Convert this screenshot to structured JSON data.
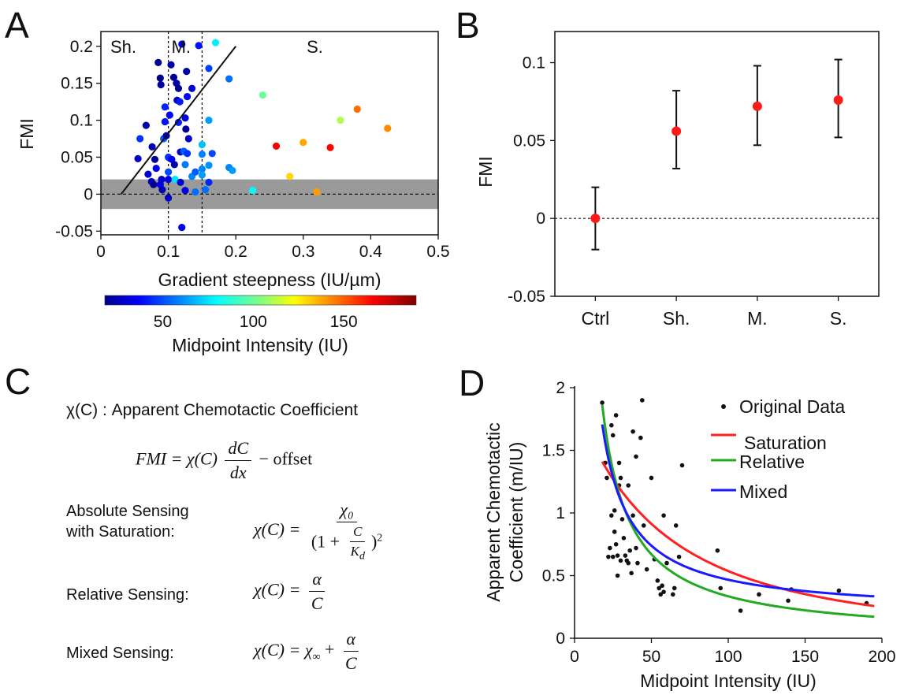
{
  "panel_letters": {
    "a": "A",
    "b": "B",
    "c": "C",
    "d": "D"
  },
  "chart_data": [
    {
      "panel": "A",
      "type": "scatter",
      "xlabel": "Gradient steepness (IU/µm)",
      "ylabel": "FMI",
      "xlim": [
        0,
        0.5
      ],
      "ylim": [
        -0.055,
        0.22
      ],
      "xticks": [
        "0",
        "0.1",
        "0.2",
        "0.3",
        "0.4",
        "0.5"
      ],
      "xtick_values": [
        0,
        0.1,
        0.2,
        0.3,
        0.4,
        0.5
      ],
      "yticks": [
        "-0.05",
        "0",
        "0.05",
        "0.1",
        "0.15",
        "0.2"
      ],
      "ytick_values": [
        -0.05,
        0,
        0.05,
        0.1,
        0.15,
        0.2
      ],
      "regions": [
        "Sh.",
        "M.",
        "S."
      ],
      "region_boundaries": [
        0.1,
        0.15
      ],
      "control_band": [
        -0.02,
        0.02
      ],
      "fit_line": {
        "x": [
          0.03,
          0.2
        ],
        "y": [
          0.0,
          0.2
        ]
      },
      "colorbar": {
        "label": "Midpoint Intensity (IU)",
        "range": [
          18,
          190
        ],
        "ticks": [
          "50",
          "100",
          "150"
        ],
        "tick_values": [
          50,
          100,
          150
        ],
        "colormap": "jet"
      },
      "points": [
        {
          "x": 0.055,
          "y": 0.048,
          "c": 30
        },
        {
          "x": 0.058,
          "y": 0.075,
          "c": 48
        },
        {
          "x": 0.067,
          "y": 0.093,
          "c": 25
        },
        {
          "x": 0.07,
          "y": 0.027,
          "c": 32
        },
        {
          "x": 0.075,
          "y": 0.017,
          "c": 28
        },
        {
          "x": 0.076,
          "y": 0.064,
          "c": 27
        },
        {
          "x": 0.078,
          "y": 0.013,
          "c": 20
        },
        {
          "x": 0.08,
          "y": 0.047,
          "c": 22
        },
        {
          "x": 0.082,
          "y": 0.035,
          "c": 38
        },
        {
          "x": 0.085,
          "y": 0.178,
          "c": 22
        },
        {
          "x": 0.088,
          "y": 0.157,
          "c": 20
        },
        {
          "x": 0.088,
          "y": 0.013,
          "c": 35
        },
        {
          "x": 0.089,
          "y": 0.148,
          "c": 24
        },
        {
          "x": 0.09,
          "y": 0.02,
          "c": 30
        },
        {
          "x": 0.091,
          "y": 0.006,
          "c": 27
        },
        {
          "x": 0.093,
          "y": 0.075,
          "c": 55
        },
        {
          "x": 0.095,
          "y": 0.098,
          "c": 42
        },
        {
          "x": 0.095,
          "y": 0.118,
          "c": 45
        },
        {
          "x": 0.097,
          "y": 0.079,
          "c": 28
        },
        {
          "x": 0.1,
          "y": 0.03,
          "c": 52
        },
        {
          "x": 0.1,
          "y": 0.05,
          "c": 48
        },
        {
          "x": 0.1,
          "y": 0.02,
          "c": 35
        },
        {
          "x": 0.1,
          "y": -0.005,
          "c": 30
        },
        {
          "x": 0.102,
          "y": 0.107,
          "c": 40
        },
        {
          "x": 0.104,
          "y": 0.175,
          "c": 26
        },
        {
          "x": 0.105,
          "y": 0.047,
          "c": 38
        },
        {
          "x": 0.108,
          "y": 0.158,
          "c": 22
        },
        {
          "x": 0.109,
          "y": 0.04,
          "c": 26
        },
        {
          "x": 0.11,
          "y": 0.02,
          "c": 78
        },
        {
          "x": 0.112,
          "y": 0.15,
          "c": 24
        },
        {
          "x": 0.113,
          "y": 0.127,
          "c": 28
        },
        {
          "x": 0.115,
          "y": 0.143,
          "c": 20
        },
        {
          "x": 0.115,
          "y": 0.097,
          "c": 45
        },
        {
          "x": 0.117,
          "y": 0.125,
          "c": 44
        },
        {
          "x": 0.118,
          "y": 0.057,
          "c": 30
        },
        {
          "x": 0.118,
          "y": 0.016,
          "c": 32
        },
        {
          "x": 0.12,
          "y": -0.045,
          "c": 36
        },
        {
          "x": 0.12,
          "y": 0.203,
          "c": 40
        },
        {
          "x": 0.123,
          "y": 0.058,
          "c": 55
        },
        {
          "x": 0.125,
          "y": 0.103,
          "c": 34
        },
        {
          "x": 0.125,
          "y": 0.04,
          "c": 60
        },
        {
          "x": 0.125,
          "y": 0.005,
          "c": 35
        },
        {
          "x": 0.126,
          "y": 0.088,
          "c": 22
        },
        {
          "x": 0.127,
          "y": 0.166,
          "c": 24
        },
        {
          "x": 0.128,
          "y": 0.132,
          "c": 40
        },
        {
          "x": 0.128,
          "y": 0.055,
          "c": 48
        },
        {
          "x": 0.13,
          "y": 0.075,
          "c": 30
        },
        {
          "x": 0.135,
          "y": 0.143,
          "c": 32
        },
        {
          "x": 0.135,
          "y": 0.024,
          "c": 62
        },
        {
          "x": 0.14,
          "y": 0.003,
          "c": 58
        },
        {
          "x": 0.14,
          "y": 0.03,
          "c": 55
        },
        {
          "x": 0.145,
          "y": 0.201,
          "c": 42
        },
        {
          "x": 0.15,
          "y": 0.034,
          "c": 62
        },
        {
          "x": 0.15,
          "y": 0.067,
          "c": 72
        },
        {
          "x": 0.15,
          "y": 0.054,
          "c": 62
        },
        {
          "x": 0.15,
          "y": 0.026,
          "c": 66
        },
        {
          "x": 0.155,
          "y": 0.006,
          "c": 58
        },
        {
          "x": 0.16,
          "y": 0.17,
          "c": 50
        },
        {
          "x": 0.16,
          "y": 0.1,
          "c": 66
        },
        {
          "x": 0.16,
          "y": 0.039,
          "c": 64
        },
        {
          "x": 0.16,
          "y": 0.016,
          "c": 46
        },
        {
          "x": 0.165,
          "y": 0.055,
          "c": 52
        },
        {
          "x": 0.17,
          "y": 0.205,
          "c": 80
        },
        {
          "x": 0.19,
          "y": 0.036,
          "c": 62
        },
        {
          "x": 0.19,
          "y": 0.156,
          "c": 58
        },
        {
          "x": 0.195,
          "y": 0.032,
          "c": 66
        },
        {
          "x": 0.225,
          "y": 0.005,
          "c": 82
        },
        {
          "x": 0.24,
          "y": 0.134,
          "c": 100
        },
        {
          "x": 0.26,
          "y": 0.065,
          "c": 170
        },
        {
          "x": 0.28,
          "y": 0.024,
          "c": 132
        },
        {
          "x": 0.3,
          "y": 0.07,
          "c": 140
        },
        {
          "x": 0.32,
          "y": 0.003,
          "c": 142
        },
        {
          "x": 0.34,
          "y": 0.063,
          "c": 168
        },
        {
          "x": 0.355,
          "y": 0.1,
          "c": 112
        },
        {
          "x": 0.38,
          "y": 0.115,
          "c": 150
        },
        {
          "x": 0.425,
          "y": 0.089,
          "c": 145
        }
      ]
    },
    {
      "panel": "B",
      "type": "scatter",
      "categories": [
        "Ctrl",
        "Sh.",
        "M.",
        "S."
      ],
      "values": [
        0.0,
        0.056,
        0.072,
        0.076
      ],
      "error_low": [
        -0.02,
        0.032,
        0.047,
        0.052
      ],
      "error_high": [
        0.02,
        0.082,
        0.098,
        0.102
      ],
      "ylabel": "FMI",
      "ylim": [
        -0.05,
        0.12
      ],
      "yticks": [
        "-0.05",
        "0",
        "0.05",
        "0.1"
      ],
      "ytick_values": [
        -0.05,
        0,
        0.05,
        0.1
      ],
      "marker_color": "#ff1a1a"
    },
    {
      "panel": "D",
      "type": "scatter",
      "xlabel": "Midpoint Intensity (IU)",
      "ylabel": "Apparent Chemotactic Coefficient (m/IU)",
      "ylabel_lines": [
        "Apparent Chemotactic",
        "Coefficient (m/IU)"
      ],
      "xlim": [
        0,
        200
      ],
      "ylim": [
        0,
        2
      ],
      "xticks": [
        "0",
        "50",
        "100",
        "150",
        "200"
      ],
      "xtick_values": [
        0,
        50,
        100,
        150,
        200
      ],
      "yticks": [
        "0",
        "0.5",
        "1",
        "1.5",
        "2"
      ],
      "ytick_values": [
        0,
        0.5,
        1,
        1.5,
        2
      ],
      "legend_position": "top-right",
      "series": [
        {
          "name": "Original Data",
          "kind": "points",
          "color": "#111111",
          "points": [
            [
              18,
              1.88
            ],
            [
              20,
              1.4
            ],
            [
              21,
              1.28
            ],
            [
              22,
              0.65
            ],
            [
              23,
              0.72
            ],
            [
              24,
              1.7
            ],
            [
              24,
              0.98
            ],
            [
              25,
              1.62
            ],
            [
              25,
              0.65
            ],
            [
              26,
              1.02
            ],
            [
              26,
              0.85
            ],
            [
              27,
              1.78
            ],
            [
              27,
              0.75
            ],
            [
              28,
              0.66
            ],
            [
              28,
              0.5
            ],
            [
              29,
              1.4
            ],
            [
              29,
              1.22
            ],
            [
              30,
              1.28
            ],
            [
              30,
              0.62
            ],
            [
              31,
              0.95
            ],
            [
              32,
              0.8
            ],
            [
              33,
              0.66
            ],
            [
              34,
              0.62
            ],
            [
              35,
              1.22
            ],
            [
              35,
              0.6
            ],
            [
              36,
              0.7
            ],
            [
              37,
              0.52
            ],
            [
              38,
              1.65
            ],
            [
              38,
              0.98
            ],
            [
              40,
              1.45
            ],
            [
              40,
              0.72
            ],
            [
              41,
              0.6
            ],
            [
              43,
              1.6
            ],
            [
              44,
              1.9
            ],
            [
              45,
              0.9
            ],
            [
              47,
              0.55
            ],
            [
              50,
              1.28
            ],
            [
              52,
              0.63
            ],
            [
              54,
              0.46
            ],
            [
              55,
              0.4
            ],
            [
              56,
              0.35
            ],
            [
              57,
              0.42
            ],
            [
              58,
              0.98
            ],
            [
              58,
              0.37
            ],
            [
              60,
              0.6
            ],
            [
              64,
              0.35
            ],
            [
              65,
              0.4
            ],
            [
              66,
              0.9
            ],
            [
              68,
              0.65
            ],
            [
              70,
              1.38
            ],
            [
              93,
              0.7
            ],
            [
              95,
              0.4
            ],
            [
              108,
              0.22
            ],
            [
              120,
              0.35
            ],
            [
              139,
              0.3
            ],
            [
              141,
              0.39
            ],
            [
              172,
              0.38
            ],
            [
              190,
              0.28
            ]
          ]
        },
        {
          "name": "Saturation",
          "kind": "line",
          "color": "#ff2020",
          "model": "saturation",
          "chi0": 1.89,
          "Kd": 114,
          "x_range": [
            18,
            195
          ]
        },
        {
          "name": "Relative",
          "kind": "line",
          "color": "#22aa22",
          "model": "relative",
          "alpha": 33.5,
          "x_range": [
            18,
            195
          ]
        },
        {
          "name": "Mixed",
          "kind": "line",
          "color": "#1a1aff",
          "model": "mixed",
          "chi_inf": 0.195,
          "alpha": 27.2,
          "x_range": [
            18,
            195
          ]
        }
      ]
    }
  ],
  "equations": {
    "chi_def": "χ(C) : Apparent Chemotactic Coefficient",
    "fmi_lhs": "FMI = χ(C)",
    "fmi_frac_num": "dC",
    "fmi_frac_den": "dx",
    "fmi_tail": "− offset",
    "absolute_label_1": "Absolute Sensing",
    "absolute_label_2": "with Saturation:",
    "absolute_lhs": "χ(C) =",
    "absolute_num": "χ₀",
    "absolute_den_pre": "(1 +",
    "absolute_den_c": "C",
    "absolute_den_kd": "K",
    "absolute_den_kd_sub": "d",
    "absolute_den_post": ")",
    "absolute_den_pow": "2",
    "relative_label": "Relative Sensing:",
    "relative_lhs": "χ(C) =",
    "relative_num": "α",
    "relative_den": "C",
    "mixed_label": "Mixed Sensing:",
    "mixed_lhs": "χ(C) = χ",
    "mixed_sub": "∞",
    "mixed_plus": "+",
    "mixed_num": "α",
    "mixed_den": "C"
  }
}
